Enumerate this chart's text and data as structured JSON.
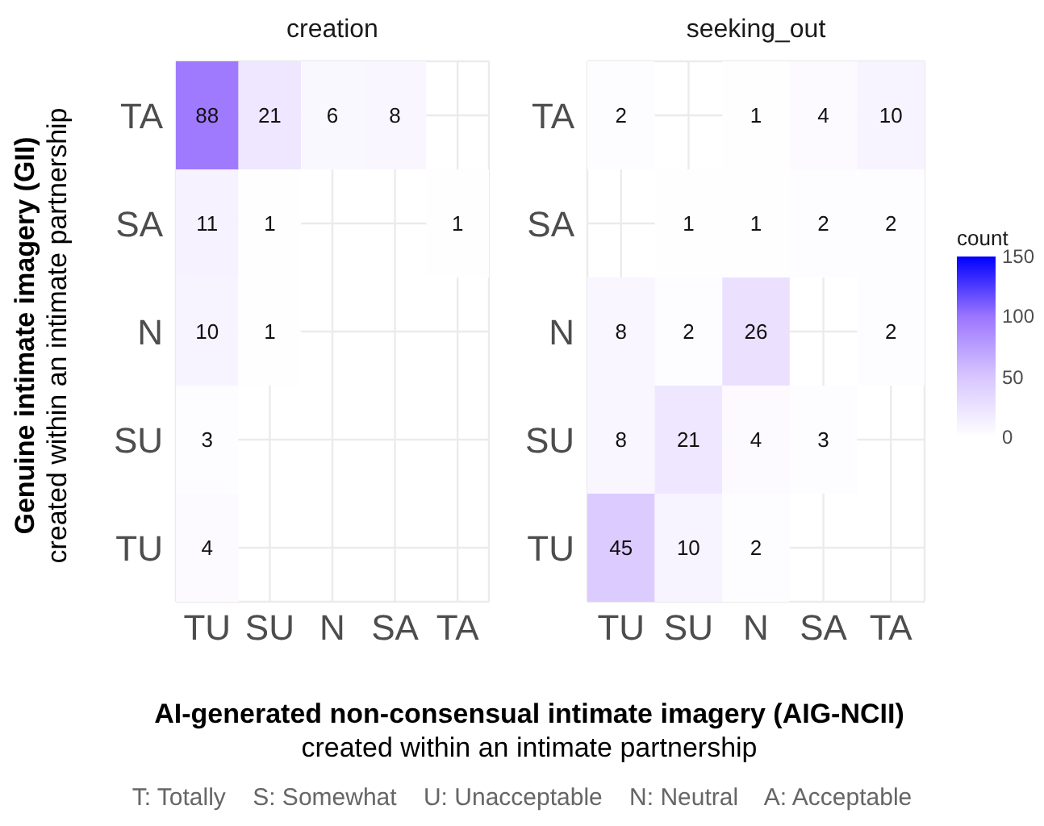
{
  "chart_data": [
    {
      "type": "heatmap",
      "title": "creation",
      "ylabel": "Genuine intimate imagery (GII)\ncreated within an intimate partnership",
      "xlabel": "AI-generated non-consensual intimate imagery (AIG-NCII)\ncreated within an intimate partnership",
      "annotations": [
        "T: Totally    S: Somewhat    U: Unacceptable    N: Neutral    A: Acceptable"
      ],
      "categories": [
        "TU",
        "SU",
        "N",
        "SA",
        "TA"
      ],
      "y_categories": [
        "TA",
        "SA",
        "N",
        "SU",
        "TU"
      ],
      "data_labels": true,
      "grid": true,
      "cells": [
        [
          88,
          21,
          6,
          8,
          null
        ],
        [
          11,
          1,
          null,
          null,
          1
        ],
        [
          10,
          1,
          null,
          null,
          null
        ],
        [
          3,
          null,
          null,
          null,
          null
        ],
        [
          4,
          null,
          null,
          null,
          null
        ]
      ]
    },
    {
      "type": "heatmap",
      "title": "seeking_out",
      "clabel": "count",
      "categories": [
        "TU",
        "SU",
        "N",
        "SA",
        "TA"
      ],
      "y_categories": [
        "TA",
        "SA",
        "N",
        "SU",
        "TU"
      ],
      "data_labels": true,
      "grid": true,
      "clim": [
        0,
        150
      ],
      "cticks": [
        0,
        50,
        100,
        150
      ],
      "cells": [
        [
          2,
          null,
          1,
          4,
          10
        ],
        [
          null,
          1,
          1,
          2,
          2
        ],
        [
          8,
          2,
          26,
          null,
          2
        ],
        [
          8,
          21,
          4,
          3,
          null
        ],
        [
          45,
          10,
          2,
          null,
          null
        ]
      ]
    }
  ]
}
